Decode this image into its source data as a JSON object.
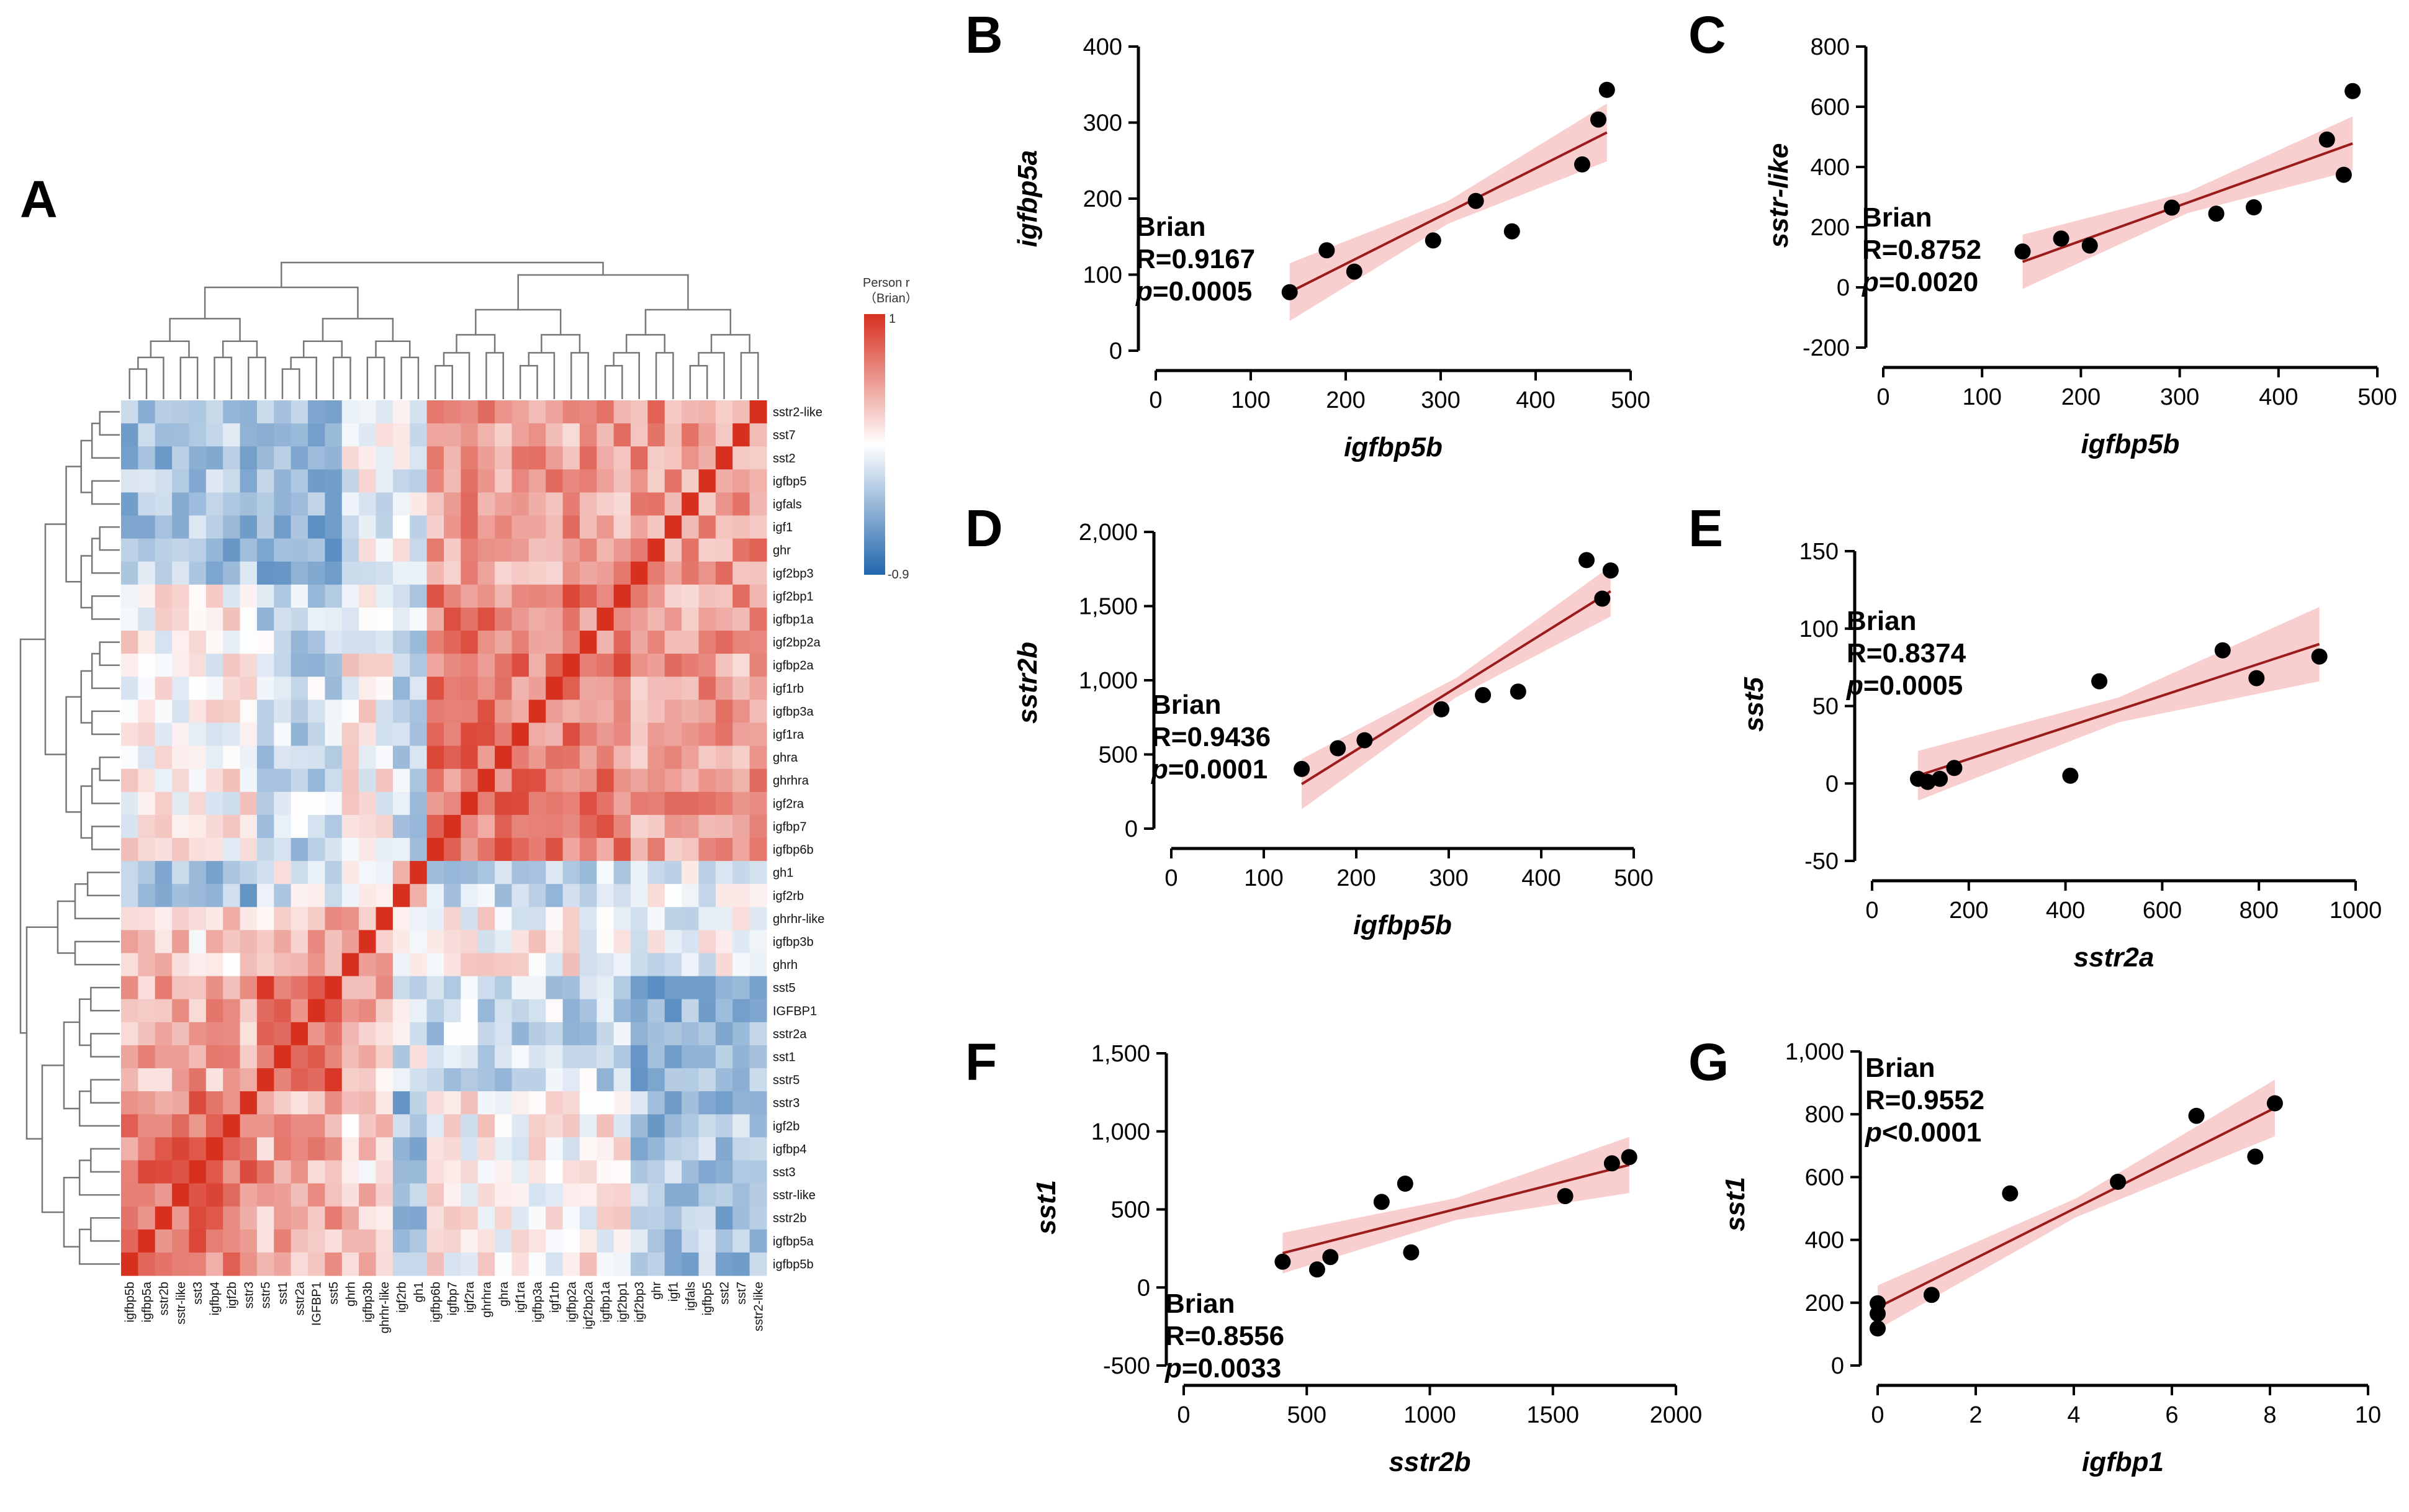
{
  "heatmap": {
    "panel_label": "A",
    "legend_title_line1": "Person r",
    "legend_title_line2": "（Brian）",
    "legend_max": "1",
    "legend_min": "-0.9",
    "colors": {
      "high": "#d7301f",
      "mid": "#ffffff",
      "low": "#2166ac"
    },
    "row_labels": [
      "sstr2-like",
      "sst7",
      "sst2",
      "igfbp5",
      "igfals",
      "igf1",
      "ghr",
      "igf2bp3",
      "igf2bp1",
      "igfbp1a",
      "igf2bp2a",
      "igfbp2a",
      "igf1rb",
      "igfbp3a",
      "igf1ra",
      "ghra",
      "ghrhra",
      "igf2ra",
      "igfbp7",
      "igfbp6b",
      "gh1",
      "igf2rb",
      "ghrhr-like",
      "igfbp3b",
      "ghrh",
      "sst5",
      "IGFBP1",
      "sstr2a",
      "sst1",
      "sstr5",
      "sstr3",
      "igf2b",
      "igfbp4",
      "sst3",
      "sstr-like",
      "sstr2b",
      "igfbp5a",
      "igfbp5b"
    ],
    "col_labels": [
      "igfbp5b",
      "igfbp5a",
      "sstr2b",
      "sstr-like",
      "sst3",
      "igfbp4",
      "igf2b",
      "sstr3",
      "sstr5",
      "sst1",
      "sstr2a",
      "IGFBP1",
      "sst5",
      "ghrh",
      "igfbp3b",
      "ghrhr-like",
      "igf2rb",
      "gh1",
      "igfbp6b",
      "igfbp7",
      "igf2ra",
      "ghrhra",
      "ghra",
      "igf1ra",
      "igfbp3a",
      "igf1rb",
      "igfbp2a",
      "igf2bp2a",
      "igfbp1a",
      "igf2bp1",
      "igf2bp3",
      "ghr",
      "igf1",
      "igfals",
      "igfbp5",
      "sst2",
      "sst7",
      "sstr2-like"
    ]
  },
  "chart_data": [
    {
      "panel": "B",
      "type": "scatter",
      "title": "",
      "xlabel": "igfbp5b",
      "ylabel": "igfbp5a",
      "xlim": [
        0,
        500
      ],
      "ylim": [
        0,
        400
      ],
      "xticks": [
        "0",
        "100",
        "200",
        "300",
        "400",
        "500"
      ],
      "yticks": [
        "0",
        "100",
        "200",
        "300",
        "400"
      ],
      "annotation": {
        "line1": "Brian",
        "line2": "R=0.9167",
        "p_symbol": "p",
        "p_value": "=0.0005"
      },
      "x": [
        141,
        180,
        209,
        292,
        337,
        375,
        449,
        466,
        475
      ],
      "y": [
        77,
        132,
        104,
        145,
        197,
        157,
        245,
        304,
        343
      ],
      "fit": {
        "x0": 141,
        "y0": 77,
        "x1": 475,
        "y1": 287
      },
      "ci_halfwidth": [
        38,
        15,
        38
      ]
    },
    {
      "panel": "C",
      "type": "scatter",
      "title": "",
      "xlabel": "igfbp5b",
      "ylabel": "sstr-like",
      "xlim": [
        0,
        500
      ],
      "ylim": [
        -200,
        800
      ],
      "xticks": [
        "0",
        "100",
        "200",
        "300",
        "400",
        "500"
      ],
      "yticks": [
        "-200",
        "0",
        "200",
        "400",
        "600",
        "800"
      ],
      "annotation": {
        "line1": "Brian",
        "line2": "R=0.8752",
        "p_symbol": "p",
        "p_value": "=0.0020"
      },
      "x": [
        141,
        180,
        209,
        292,
        337,
        375,
        449,
        466,
        475
      ],
      "y": [
        119,
        162,
        139,
        265,
        245,
        266,
        491,
        374,
        652
      ],
      "fit": {
        "x0": 141,
        "y0": 85,
        "x1": 475,
        "y1": 478
      },
      "ci_halfwidth": [
        90,
        35,
        90
      ]
    },
    {
      "panel": "D",
      "type": "scatter",
      "title": "",
      "xlabel": "igfbp5b",
      "ylabel": "sstr2b",
      "xlim": [
        0,
        500
      ],
      "ylim": [
        0,
        2000
      ],
      "xticks": [
        "0",
        "100",
        "200",
        "300",
        "400",
        "500"
      ],
      "yticks": [
        "0",
        "500",
        "1,000",
        "1,500",
        "2,000"
      ],
      "annotation": {
        "line1": "Brian",
        "line2": "R=0.9436",
        "p_symbol": "p",
        "p_value": "=0.0001"
      },
      "x": [
        141,
        180,
        209,
        292,
        337,
        375,
        449,
        466,
        475
      ],
      "y": [
        402,
        542,
        596,
        804,
        900,
        924,
        1810,
        1550,
        1740
      ],
      "fit": {
        "x0": 141,
        "y0": 300,
        "x1": 475,
        "y1": 1600
      },
      "ci_halfwidth": [
        170,
        65,
        170
      ]
    },
    {
      "panel": "E",
      "type": "scatter",
      "title": "",
      "xlabel": "sstr2a",
      "ylabel": "sst5",
      "xlim": [
        0,
        1000
      ],
      "ylim": [
        -50,
        150
      ],
      "xticks": [
        "0",
        "200",
        "400",
        "600",
        "800",
        "1000"
      ],
      "yticks": [
        "-50",
        "0",
        "50",
        "100",
        "150"
      ],
      "annotation": {
        "line1": "Brian",
        "line2": "R=0.8374",
        "p_symbol": "p",
        "p_value": "=0.0005"
      },
      "x": [
        95,
        115,
        140,
        170,
        410,
        470,
        725,
        795,
        925
      ],
      "y": [
        3,
        1,
        3,
        10,
        5,
        66,
        86,
        68,
        82
      ],
      "fit": {
        "x0": 95,
        "y0": 5,
        "x1": 925,
        "y1": 90
      },
      "ci_halfwidth": [
        16,
        8,
        24
      ]
    },
    {
      "panel": "F",
      "type": "scatter",
      "title": "",
      "xlabel": "sstr2b",
      "ylabel": "sst1",
      "xlim": [
        0,
        2000
      ],
      "ylim": [
        -500,
        1500
      ],
      "xticks": [
        "0",
        "500",
        "1000",
        "1500",
        "2000"
      ],
      "yticks": [
        "-500",
        "0",
        "500",
        "1,000",
        "1,500"
      ],
      "annotation": {
        "line1": "Brian",
        "line2": "R=0.8556",
        "p_symbol": "p",
        "p_value": "=0.0033"
      },
      "x": [
        402,
        542,
        596,
        804,
        900,
        924,
        1550,
        1740,
        1810
      ],
      "y": [
        165,
        115,
        195,
        548,
        665,
        225,
        585,
        795,
        835
      ],
      "fit": {
        "x0": 402,
        "y0": 220,
        "x1": 1810,
        "y1": 785
      },
      "ci_halfwidth": [
        130,
        70,
        180
      ]
    },
    {
      "panel": "G",
      "type": "scatter",
      "title": "",
      "xlabel": "igfbp1",
      "ylabel": "sst1",
      "xlim": [
        0,
        10
      ],
      "ylim": [
        0,
        1000
      ],
      "xticks": [
        "0",
        "2",
        "4",
        "6",
        "8",
        "10"
      ],
      "yticks": [
        "0",
        "200",
        "400",
        "600",
        "800",
        "1,000"
      ],
      "annotation": {
        "line1": "Brian",
        "line2": "R=0.9552",
        "p_symbol": "p",
        "p_value": "<0.0001"
      },
      "x": [
        0.0,
        0.0,
        0.0,
        1.1,
        2.7,
        4.9,
        6.5,
        7.7,
        8.1
      ],
      "y": [
        198,
        165,
        118,
        225,
        548,
        585,
        795,
        665,
        835
      ],
      "fit": {
        "x0": 0.0,
        "y0": 185,
        "x1": 8.1,
        "y1": 820
      },
      "ci_halfwidth": [
        70,
        30,
        90
      ]
    }
  ]
}
